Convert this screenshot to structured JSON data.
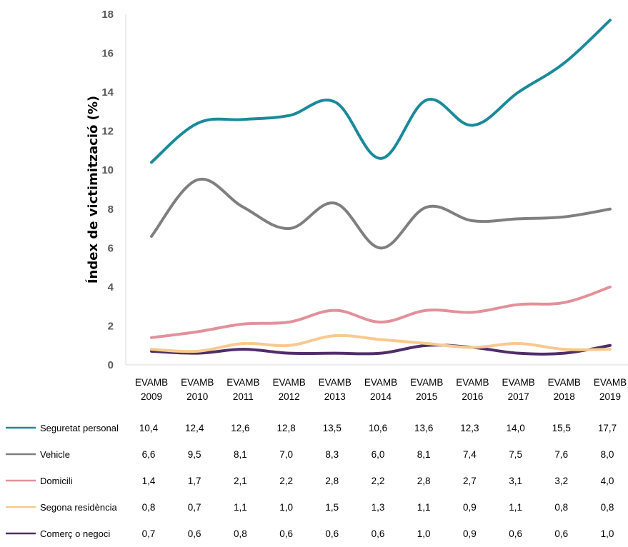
{
  "chart_data": {
    "type": "line",
    "ylabel": "Índex de victimització (%)",
    "xlabel": "",
    "ylim": [
      0,
      18
    ],
    "yticks": [
      0,
      2,
      4,
      6,
      8,
      10,
      12,
      14,
      16,
      18
    ],
    "grid": false,
    "legend": "data-table-bottom",
    "categories": [
      [
        "EVAMB",
        "2009"
      ],
      [
        "EVAMB",
        "2010"
      ],
      [
        "EVAMB",
        "2011"
      ],
      [
        "EVAMB",
        "2012"
      ],
      [
        "EVAMB",
        "2013"
      ],
      [
        "EVAMB",
        "2014"
      ],
      [
        "EVAMB",
        "2015"
      ],
      [
        "EVAMB",
        "2016"
      ],
      [
        "EVAMB",
        "2017"
      ],
      [
        "EVAMB",
        "2018"
      ],
      [
        "EVAMB",
        "2019"
      ]
    ],
    "series": [
      {
        "name": "Seguretat personal",
        "color": "#1a8a9a",
        "values": [
          10.4,
          12.4,
          12.6,
          12.8,
          13.5,
          10.6,
          13.6,
          12.3,
          14.0,
          15.5,
          17.7
        ],
        "labels": [
          "10,4",
          "12,4",
          "12,6",
          "12,8",
          "13,5",
          "10,6",
          "13,6",
          "12,3",
          "14,0",
          "15,5",
          "17,7"
        ]
      },
      {
        "name": "Vehicle",
        "color": "#7f7f7f",
        "values": [
          6.6,
          9.5,
          8.1,
          7.0,
          8.3,
          6.0,
          8.1,
          7.4,
          7.5,
          7.6,
          8.0
        ],
        "labels": [
          "6,6",
          "9,5",
          "8,1",
          "7,0",
          "8,3",
          "6,0",
          "8,1",
          "7,4",
          "7,5",
          "7,6",
          "8,0"
        ]
      },
      {
        "name": "Domicili",
        "color": "#e3909a",
        "values": [
          1.4,
          1.7,
          2.1,
          2.2,
          2.8,
          2.2,
          2.8,
          2.7,
          3.1,
          3.2,
          4.0
        ],
        "labels": [
          "1,4",
          "1,7",
          "2,1",
          "2,2",
          "2,8",
          "2,2",
          "2,8",
          "2,7",
          "3,1",
          "3,2",
          "4,0"
        ]
      },
      {
        "name": "Segona residència",
        "color": "#f8c98f",
        "values": [
          0.8,
          0.7,
          1.1,
          1.0,
          1.5,
          1.3,
          1.1,
          0.9,
          1.1,
          0.8,
          0.8
        ],
        "labels": [
          "0,8",
          "0,7",
          "1,1",
          "1,0",
          "1,5",
          "1,3",
          "1,1",
          "0,9",
          "1,1",
          "0,8",
          "0,8"
        ]
      },
      {
        "name": "Comerç o negoci",
        "color": "#4f2d6b",
        "values": [
          0.7,
          0.6,
          0.8,
          0.6,
          0.6,
          0.6,
          1.0,
          0.9,
          0.6,
          0.6,
          1.0
        ],
        "labels": [
          "0,7",
          "0,6",
          "0,8",
          "0,6",
          "0,6",
          "0,6",
          "1,0",
          "0,9",
          "0,6",
          "0,6",
          "1,0"
        ]
      }
    ]
  }
}
